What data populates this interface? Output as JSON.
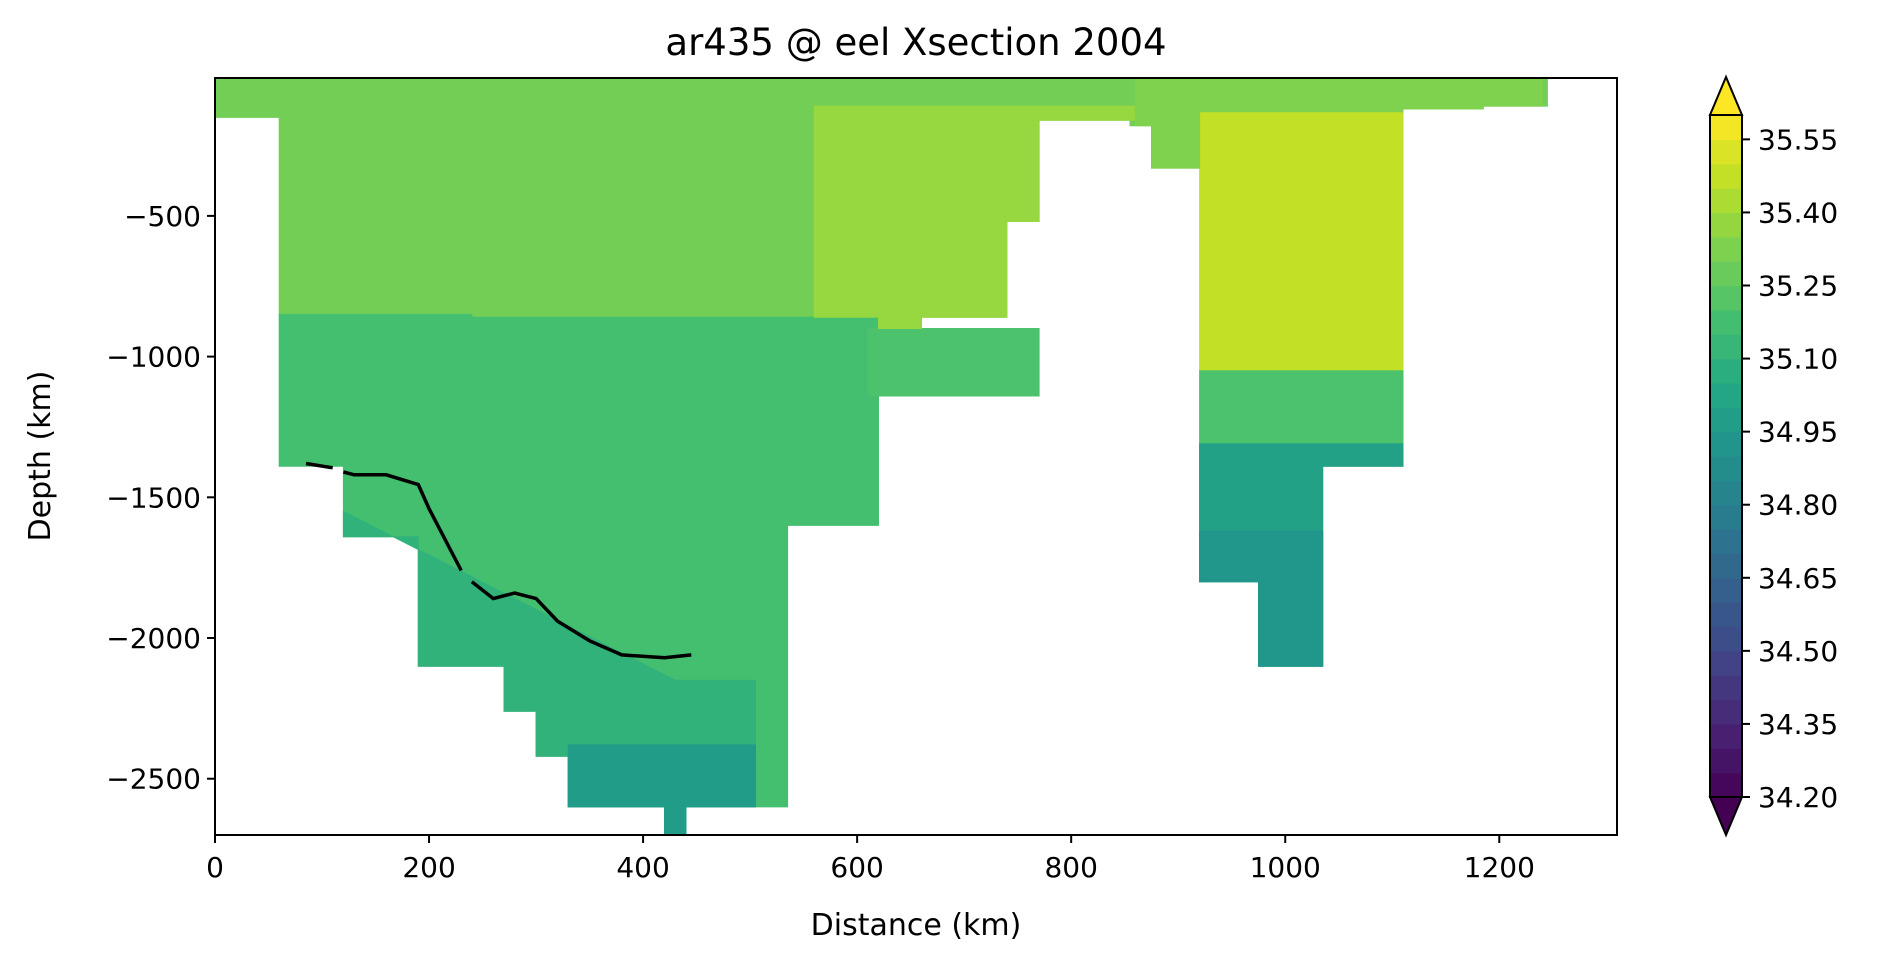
{
  "chart_data": {
    "type": "heatmap",
    "title": "ar435 @ eel Xsection 2004",
    "xlabel": "Distance (km)",
    "ylabel": "Depth (km)",
    "xlim": [
      0,
      1310
    ],
    "ylim": [
      -2700,
      -10
    ],
    "x_ticks": [
      0,
      200,
      400,
      600,
      800,
      1000,
      1200
    ],
    "x_tick_labels": [
      "0",
      "200",
      "400",
      "600",
      "800",
      "1000",
      "1200"
    ],
    "y_ticks": [
      -500,
      -1000,
      -1500,
      -2000,
      -2500
    ],
    "y_tick_labels": [
      "−500",
      "−1000",
      "−1500",
      "−2000",
      "−2500"
    ],
    "colorbar": {
      "range": [
        34.2,
        35.6
      ],
      "extend": "both",
      "ticks": [
        34.2,
        34.35,
        34.5,
        34.65,
        34.8,
        34.95,
        35.1,
        35.25,
        35.4,
        35.55
      ],
      "tick_labels": [
        "34.20",
        "34.35",
        "34.50",
        "34.65",
        "34.80",
        "34.95",
        "35.10",
        "35.25",
        "35.40",
        "35.55"
      ],
      "colormap": "viridis",
      "colors": [
        "#440154",
        "#482475",
        "#414487",
        "#355f8d",
        "#2a788e",
        "#21918c",
        "#22a884",
        "#44bf70",
        "#7ad151",
        "#bddf26",
        "#fde725"
      ]
    },
    "regions": [
      {
        "x": [
          0,
          60,
          60,
          120,
          120,
          190,
          190,
          270,
          270,
          300,
          300,
          330,
          330,
          420,
          420,
          440,
          440,
          505,
          505,
          535,
          535,
          610,
          610,
          660,
          660,
          745,
          745,
          770,
          770,
          840,
          840,
          900,
          900,
          920,
          920,
          975,
          975,
          1035,
          1035,
          1110,
          1110,
          1185,
          1185,
          1245,
          1245,
          0
        ],
        "y": [
          -10,
          -10,
          -10,
          -10,
          -10,
          -10,
          -10,
          -10,
          -10,
          -10,
          -10,
          -10,
          -10,
          -10,
          -10,
          -10,
          -10,
          -10,
          -10,
          -10,
          -10,
          -10,
          -10,
          -10,
          -10,
          -10,
          -10,
          -10,
          -10,
          -10,
          -10,
          -10,
          -10,
          -10,
          -10,
          -10,
          -10,
          -10,
          -10,
          -10,
          -10,
          -10,
          -10,
          -10,
          -10,
          -10
        ],
        "value": 35.3
      },
      {
        "x": [
          0,
          1245,
          1245,
          1185,
          1185,
          1110,
          1110,
          920,
          920,
          875,
          875,
          855,
          855,
          770,
          770,
          740,
          740,
          660,
          660,
          620,
          620,
          560,
          560,
          505,
          505,
          470,
          470,
          300,
          300,
          240,
          240,
          60,
          60,
          0
        ],
        "y": [
          -10,
          -10,
          -110,
          -110,
          -120,
          -120,
          -130,
          -130,
          -330,
          -330,
          -180,
          -180,
          -160,
          -160,
          -520,
          -520,
          -860,
          -860,
          -900,
          -900,
          -860,
          -860,
          -900,
          -900,
          -860,
          -860,
          -860,
          -860,
          -860,
          -860,
          -850,
          -850,
          -150,
          -150
        ],
        "value": 35.3
      },
      {
        "x": [
          60,
          240,
          240,
          330,
          330,
          470,
          470,
          560,
          560,
          620,
          620,
          660,
          660,
          620,
          620,
          535,
          535,
          505,
          505,
          440,
          440,
          420,
          420,
          330,
          330,
          300,
          300,
          270,
          270,
          190,
          190,
          120,
          120,
          60
        ],
        "y": [
          -850,
          -850,
          -860,
          -860,
          -860,
          -860,
          -860,
          -860,
          -860,
          -860,
          -860,
          -860,
          -1140,
          -1140,
          -1600,
          -1600,
          -2600,
          -2600,
          -2600,
          -2600,
          -2700,
          -2700,
          -2600,
          -2600,
          -2420,
          -2420,
          -2260,
          -2260,
          -2100,
          -2100,
          -1640,
          -1640,
          -1390,
          -1390
        ],
        "value": 35.18
      },
      {
        "x": [
          120,
          430,
          505,
          505,
          440,
          440,
          420,
          420,
          330,
          330,
          300,
          300,
          270,
          270,
          190,
          190,
          120
        ],
        "y": [
          -1550,
          -2150,
          -2150,
          -2600,
          -2600,
          -2700,
          -2700,
          -2600,
          -2600,
          -2420,
          -2420,
          -2260,
          -2260,
          -2100,
          -2100,
          -1640,
          -1640
        ],
        "value": 35.1
      },
      {
        "x": [
          330,
          505,
          505,
          440,
          440,
          420,
          420,
          330
        ],
        "y": [
          -2380,
          -2380,
          -2600,
          -2600,
          -2700,
          -2700,
          -2600,
          -2600
        ],
        "value": 34.97
      },
      {
        "x": [
          920,
          1110,
          1110,
          1035,
          1035,
          975,
          975,
          920
        ],
        "y": [
          -130,
          -130,
          -1050,
          -1050,
          -1050,
          -1050,
          -1050,
          -1050
        ],
        "value": 35.47
      },
      {
        "x": [
          920,
          1110,
          1110,
          1035,
          1035,
          975,
          975,
          920
        ],
        "y": [
          -1050,
          -1050,
          -1390,
          -1390,
          -2100,
          -2100,
          -1800,
          -1800
        ],
        "value": 35.2
      },
      {
        "x": [
          920,
          1110,
          1110,
          1035,
          1035,
          975,
          975,
          920
        ],
        "y": [
          -1310,
          -1310,
          -1390,
          -1390,
          -2100,
          -2100,
          -1800,
          -1800
        ],
        "value": 35.0
      },
      {
        "x": [
          920,
          1035,
          1035,
          975,
          975,
          920
        ],
        "y": [
          -1620,
          -1620,
          -2100,
          -2100,
          -1800,
          -1800
        ],
        "value": 34.93
      },
      {
        "x": [
          610,
          770,
          770,
          660,
          660,
          620,
          620,
          610
        ],
        "y": [
          -900,
          -900,
          -1140,
          -1140,
          -1140,
          -1140,
          -1140,
          -1140
        ],
        "value": 35.2
      },
      {
        "x": [
          560,
          860,
          860,
          770,
          770,
          740,
          740,
          660,
          660,
          620,
          620,
          560
        ],
        "y": [
          -110,
          -110,
          -160,
          -160,
          -520,
          -520,
          -860,
          -860,
          -900,
          -900,
          -860,
          -860
        ],
        "value": 35.38
      },
      {
        "x": [
          860,
          1240,
          1240,
          1185,
          1185,
          1110,
          1110,
          920,
          920,
          875,
          875,
          860
        ],
        "y": [
          -10,
          -10,
          -110,
          -110,
          -120,
          -120,
          -130,
          -130,
          -330,
          -330,
          -180,
          -180
        ],
        "value": 35.33
      }
    ],
    "contour_line": {
      "x": [
        85,
        110,
        120,
        130,
        160,
        190,
        200,
        215,
        230,
        240,
        260,
        280,
        300,
        320,
        350,
        380,
        420,
        445
      ],
      "y": [
        -1380,
        -1395,
        -1410,
        -1420,
        -1420,
        -1455,
        -1540,
        -1650,
        -1760,
        -1800,
        -1860,
        -1840,
        -1860,
        -1940,
        -2010,
        -2060,
        -2070,
        -2060
      ]
    },
    "contour_breaks": [
      [
        110,
        120
      ],
      [
        230,
        240
      ]
    ]
  }
}
